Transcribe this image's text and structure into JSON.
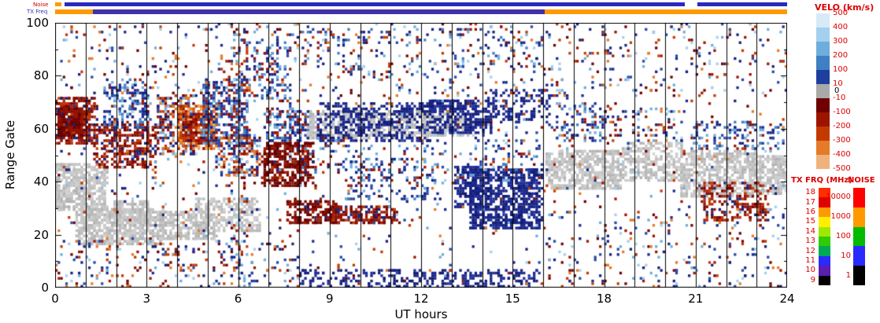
{
  "header": {
    "noise_row_label": "Noise",
    "txfreq_row_label": "TX Freq",
    "noise_segments": [
      {
        "h0": 0.0,
        "h1": 0.2,
        "color": "#ff9900"
      },
      {
        "h0": 0.3,
        "h1": 20.65,
        "color": "#2929c0"
      },
      {
        "h0": 21.05,
        "h1": 24.0,
        "color": "#2929c0"
      }
    ],
    "txfreq_segments": [
      {
        "h0": 0.0,
        "h1": 1.25,
        "color": "#ff9900"
      },
      {
        "h0": 1.25,
        "h1": 16.05,
        "color": "#4230aa"
      },
      {
        "h0": 16.05,
        "h1": 24.0,
        "color": "#ff9900"
      }
    ]
  },
  "axes": {
    "xlabel": "UT hours",
    "ylabel": "Range Gate",
    "x_ticks": [
      0,
      3,
      6,
      9,
      12,
      15,
      18,
      21,
      24
    ],
    "y_ticks": [
      0,
      20,
      40,
      60,
      80,
      100
    ],
    "x_range": [
      0,
      24
    ],
    "y_range": [
      0,
      100
    ]
  },
  "legends": {
    "velo": {
      "title": "VELO (km/s)",
      "boundary_labels": [
        "500",
        "400",
        "300",
        "200",
        "100",
        "10",
        "-10",
        "-100",
        "-200",
        "-300",
        "-400",
        "-500"
      ],
      "zero_label": "0",
      "swatches": [
        "#d6ebf7",
        "#a4d0ee",
        "#6faedc",
        "#3f7fc4",
        "#1e3f9e",
        "#a9a9a9",
        "#6e0000",
        "#9c1400",
        "#c33a00",
        "#e57a28",
        "#efb27c"
      ]
    },
    "txfrq": {
      "title": "TX FRQ (MHz)",
      "labels": [
        "18",
        "17",
        "16",
        "15",
        "14",
        "13",
        "12",
        "11",
        "10",
        "9"
      ],
      "swatches": [
        "#ff2d00",
        "#e00000",
        "#ff9900",
        "#ffee00",
        "#9fe800",
        "#2ecc00",
        "#00aa55",
        "#2a2aff",
        "#5a1eb0",
        "#000000"
      ]
    },
    "noise": {
      "title": "NOISE",
      "labels": [
        "10000",
        "1000",
        "100",
        "10",
        "1"
      ],
      "swatches": [
        "#ff0000",
        "#ff9900",
        "#00bb00",
        "#2a2aff",
        "#000000"
      ]
    }
  },
  "chart_data": {
    "type": "heatmap",
    "title": "",
    "xlabel": "UT hours",
    "ylabel": "Range Gate",
    "xlim": [
      0,
      24
    ],
    "ylim": [
      0,
      100
    ],
    "x_tick_labels": [
      "0",
      "3",
      "6",
      "9",
      "12",
      "15",
      "18",
      "21",
      "24"
    ],
    "y_tick_labels": [
      "0",
      "20",
      "40",
      "60",
      "80",
      "100"
    ],
    "grid": "vertical black line at every integer UT hour",
    "value_encoding": "Doppler velocity km/s via VELO colorbar; gray cells = ground scatter (0)",
    "palettes": {
      "gray": [
        "#bdbdbd",
        "#c6c6c6",
        "#b3b3b3",
        "#cfcfcf"
      ],
      "darkred": [
        "#6e0000",
        "#7e0a00",
        "#8f1400",
        "#5e0000",
        "#9c1400"
      ],
      "redmix": [
        "#6e0000",
        "#8f1400",
        "#9c1400",
        "#c33a00",
        "#b02010",
        "#7e0a00",
        "#15207e"
      ],
      "orange": [
        "#c33a00",
        "#e57a28",
        "#ef9a40",
        "#d85510",
        "#f0b060",
        "#9c1400"
      ],
      "navy": [
        "#15207e",
        "#1a2890",
        "#101a6e",
        "#202e9c"
      ],
      "bluemix": [
        "#15207e",
        "#2549a8",
        "#3f7fc4",
        "#6faedc",
        "#1a2890",
        "#9c1400"
      ],
      "mix": [
        "#15207e",
        "#2549a8",
        "#6faedc",
        "#6e0000",
        "#9c1400",
        "#c33a00",
        "#1a2890",
        "#a4d0ee",
        "#e57a28"
      ]
    },
    "clusters": [
      [
        0.0,
        1.7,
        29,
        47,
        520,
        "gray"
      ],
      [
        0.7,
        3.6,
        16,
        30,
        650,
        "gray"
      ],
      [
        3.3,
        5.3,
        18,
        29,
        300,
        "gray"
      ],
      [
        4.6,
        6.7,
        21,
        34,
        300,
        "gray"
      ],
      [
        1.9,
        3.1,
        23,
        33,
        160,
        "gray"
      ],
      [
        0.05,
        1.35,
        54,
        72,
        340,
        "redmix"
      ],
      [
        0.1,
        0.95,
        57,
        68,
        220,
        "darkred"
      ],
      [
        1.3,
        3.35,
        45,
        62,
        340,
        "redmix"
      ],
      [
        1.6,
        3.1,
        60,
        79,
        190,
        "bluemix"
      ],
      [
        3.3,
        4.6,
        50,
        73,
        260,
        "mix"
      ],
      [
        4.0,
        5.3,
        52,
        69,
        330,
        "orange"
      ],
      [
        4.2,
        5.1,
        55,
        66,
        130,
        "redmix"
      ],
      [
        4.8,
        6.4,
        54,
        79,
        340,
        "bluemix"
      ],
      [
        5.3,
        6.7,
        42,
        58,
        200,
        "mix"
      ],
      [
        5.7,
        6.3,
        0,
        100,
        120,
        "mix"
      ],
      [
        6.8,
        8.45,
        38,
        55,
        400,
        "darkred"
      ],
      [
        6.9,
        8.3,
        55,
        68,
        160,
        "bluemix"
      ],
      [
        6.5,
        7.7,
        70,
        93,
        110,
        "bluemix"
      ],
      [
        7.6,
        9.3,
        24,
        33,
        200,
        "darkred"
      ],
      [
        8.3,
        12.2,
        56,
        67,
        540,
        "gray"
      ],
      [
        8.6,
        12.4,
        55,
        70,
        430,
        "navy"
      ],
      [
        12.0,
        13.7,
        57,
        66,
        210,
        "gray"
      ],
      [
        12.2,
        14.3,
        58,
        71,
        300,
        "navy"
      ],
      [
        14.2,
        16.2,
        62,
        75,
        140,
        "navy"
      ],
      [
        9.0,
        11.2,
        24,
        31,
        190,
        "redmix"
      ],
      [
        8.0,
        15.9,
        0,
        7,
        300,
        "navy"
      ],
      [
        9.5,
        12.5,
        33,
        49,
        130,
        "bluemix"
      ],
      [
        13.6,
        15.95,
        22,
        45,
        750,
        "navy"
      ],
      [
        13.1,
        14.0,
        30,
        46,
        160,
        "navy"
      ],
      [
        16.1,
        18.6,
        37,
        52,
        540,
        "gray"
      ],
      [
        18.6,
        20.6,
        40,
        55,
        310,
        "gray"
      ],
      [
        20.5,
        23.0,
        34,
        52,
        540,
        "gray"
      ],
      [
        22.8,
        24.0,
        35,
        50,
        280,
        "gray"
      ],
      [
        21.2,
        23.4,
        25,
        40,
        210,
        "redmix"
      ],
      [
        16.4,
        18.1,
        55,
        70,
        100,
        "bluemix"
      ],
      [
        20.8,
        23.9,
        52,
        63,
        130,
        "bluemix"
      ],
      [
        18.0,
        20.6,
        55,
        68,
        80,
        "mix"
      ],
      [
        0.0,
        24.0,
        72,
        100,
        430,
        "mix"
      ],
      [
        6.0,
        16.0,
        80,
        98,
        170,
        "bluemix"
      ],
      [
        0.0,
        24.0,
        0,
        100,
        950,
        "mix"
      ],
      [
        0.0,
        8.0,
        0,
        18,
        210,
        "mix"
      ],
      [
        8.0,
        16.0,
        40,
        56,
        180,
        "bluemix"
      ],
      [
        16.0,
        24.0,
        0,
        30,
        170,
        "mix"
      ]
    ]
  }
}
